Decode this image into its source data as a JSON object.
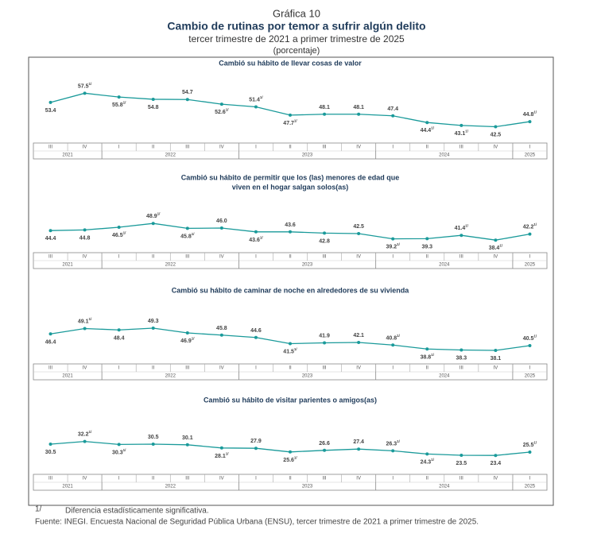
{
  "header": {
    "label": "Gráfica 10",
    "title": "Cambio de rutinas por temor a sufrir algún delito",
    "subtitle": "tercer trimestre de 2021 a primer trimestre de 2025",
    "unit": "(porcentaje)"
  },
  "chart_data": [
    {
      "type": "line",
      "title": [
        "Cambió su hábito de llevar cosas de valor"
      ],
      "categories": [
        "III",
        "IV",
        "I",
        "II",
        "III",
        "IV",
        "I",
        "II",
        "III",
        "IV",
        "I",
        "II",
        "III",
        "IV",
        "I"
      ],
      "years": [
        "2021",
        "2021",
        "2022",
        "2022",
        "2022",
        "2022",
        "2023",
        "2023",
        "2023",
        "2023",
        "2024",
        "2024",
        "2024",
        "2024",
        "2025"
      ],
      "color": "#1a9a9a",
      "ylim": [
        37,
        69
      ],
      "values": [
        53.4,
        57.5,
        55.8,
        54.8,
        54.7,
        52.6,
        51.4,
        47.7,
        48.1,
        48.1,
        47.4,
        44.4,
        43.1,
        42.5,
        44.8
      ],
      "value_notes": [
        null,
        "1/",
        "1/",
        null,
        null,
        "1/",
        "1/",
        "1/",
        null,
        null,
        null,
        "1/",
        "1/",
        null,
        "1/"
      ]
    },
    {
      "type": "line",
      "title": [
        "Cambió su hábito de permitir que los (las) menores de edad que",
        "viven en el hogar salgan solos(as)"
      ],
      "categories": [
        "III",
        "IV",
        "I",
        "II",
        "III",
        "IV",
        "I",
        "II",
        "III",
        "IV",
        "I",
        "II",
        "III",
        "IV",
        "I"
      ],
      "years": [
        "2021",
        "2021",
        "2022",
        "2022",
        "2022",
        "2022",
        "2023",
        "2023",
        "2023",
        "2023",
        "2024",
        "2024",
        "2024",
        "2024",
        "2025"
      ],
      "color": "#1a9a9a",
      "ylim": [
        32,
        77
      ],
      "values": [
        44.4,
        44.8,
        46.5,
        48.9,
        45.8,
        46.0,
        43.6,
        43.6,
        42.8,
        42.5,
        39.2,
        39.3,
        41.4,
        38.4,
        42.2
      ],
      "value_labels": [
        "44.4",
        "44.8",
        "46.5",
        "48.9",
        "45.8",
        "46.0",
        "43.6",
        "43.6",
        "42.8",
        "42.5",
        "39.2",
        "39.3",
        "41.4",
        "38.4",
        "42.2"
      ],
      "value_notes": [
        null,
        null,
        "1/",
        "1/",
        "1/",
        null,
        "1/",
        null,
        null,
        null,
        "1/",
        null,
        "1/",
        "1/",
        "1/"
      ]
    },
    {
      "type": "line",
      "title": [
        "Cambió su hábito de caminar de noche en alrededores de su vivienda"
      ],
      "categories": [
        "III",
        "IV",
        "I",
        "II",
        "III",
        "IV",
        "I",
        "II",
        "III",
        "IV",
        "I",
        "II",
        "III",
        "IV",
        "I"
      ],
      "years": [
        "2021",
        "2021",
        "2022",
        "2022",
        "2022",
        "2022",
        "2023",
        "2023",
        "2023",
        "2023",
        "2024",
        "2024",
        "2024",
        "2024",
        "2025"
      ],
      "color": "#1a9a9a",
      "ylim": [
        32.5,
        68.5
      ],
      "values": [
        46.4,
        49.1,
        48.4,
        49.3,
        46.9,
        45.8,
        44.6,
        41.5,
        41.9,
        42.1,
        40.8,
        38.8,
        38.3,
        38.1,
        40.5
      ],
      "value_notes": [
        null,
        "1/",
        null,
        null,
        "1/",
        null,
        null,
        "1/",
        null,
        null,
        "1/",
        "1/",
        null,
        null,
        "1/"
      ]
    },
    {
      "type": "line",
      "title": [
        "Cambió su hábito de visitar parientes o amigos(as)"
      ],
      "categories": [
        "III",
        "IV",
        "I",
        "II",
        "III",
        "IV",
        "I",
        "II",
        "III",
        "IV",
        "I",
        "II",
        "III",
        "IV",
        "I"
      ],
      "years": [
        "2021",
        "2021",
        "2022",
        "2022",
        "2022",
        "2022",
        "2023",
        "2023",
        "2023",
        "2023",
        "2024",
        "2024",
        "2024",
        "2024",
        "2025"
      ],
      "color": "#1a9a9a",
      "ylim": [
        13,
        58
      ],
      "values": [
        30.5,
        32.2,
        30.3,
        30.5,
        30.1,
        28.1,
        27.9,
        25.6,
        26.6,
        27.4,
        26.3,
        24.3,
        23.5,
        23.4,
        25.5
      ],
      "value_notes": [
        null,
        "1/",
        "1/",
        null,
        null,
        "1/",
        null,
        "1/",
        null,
        null,
        "1/",
        "1/",
        null,
        null,
        "1/"
      ]
    }
  ],
  "footer": {
    "note_mark": "1/",
    "note": "Diferencia estadísticamente significativa.",
    "source": "Fuente: INEGI. Encuesta Nacional de Seguridad Pública Urbana (ENSU), tercer trimestre de 2021 a primer trimestre de 2025."
  }
}
